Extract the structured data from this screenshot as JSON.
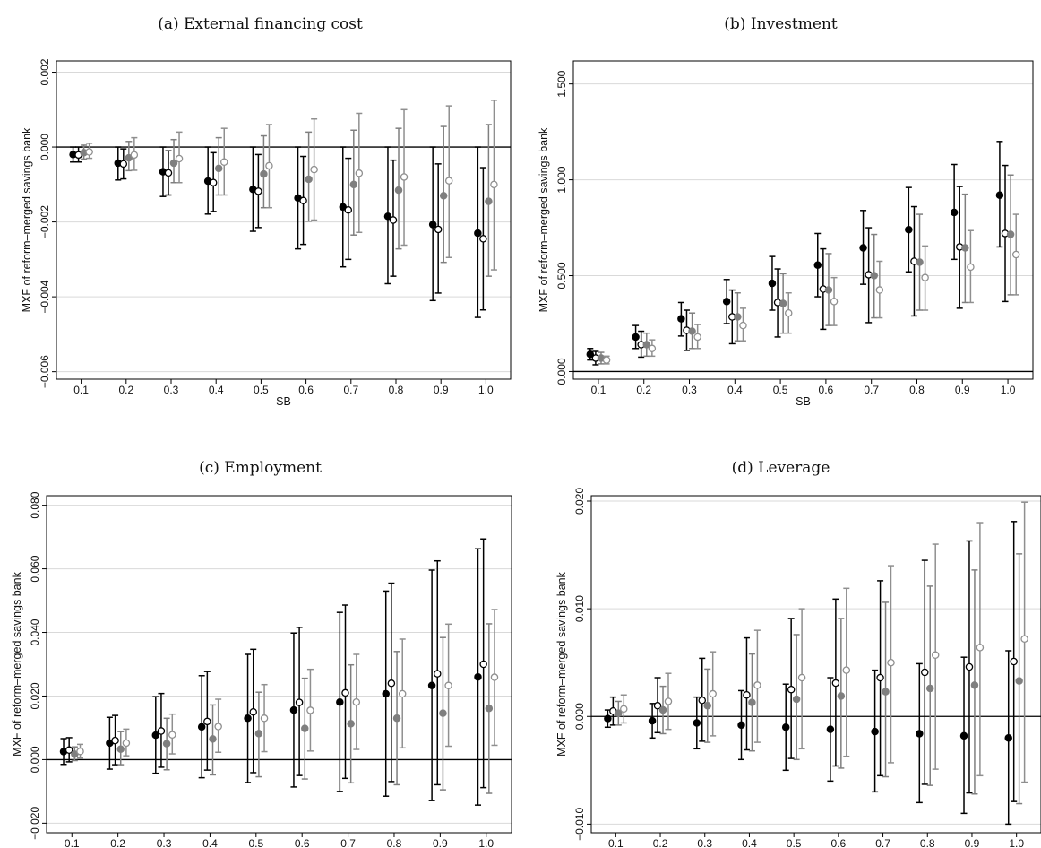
{
  "chart_data": [
    {
      "type": "scatter",
      "title": "(a) External financing cost",
      "xlabel": "SB",
      "ylabel": "MXF of reform–merged savings bank",
      "x_ticks": [
        "0.1",
        "0.2",
        "0.3",
        "0.4",
        "0.5",
        "0.6",
        "0.7",
        "0.8",
        "0.9",
        "1.0"
      ],
      "y_ticks": [
        "0.002",
        "0.000",
        "−0.002",
        "−0.004",
        "−0.006"
      ],
      "y_tick_values": [
        0.002,
        0.0,
        -0.002,
        -0.004,
        -0.006
      ],
      "ylim": [
        -0.0062,
        0.0023
      ],
      "grid": true,
      "zero_line": 0,
      "series": [
        {
          "style": "filled-black",
          "point": [
            -0.0002,
            -0.00043,
            -0.00066,
            -0.00091,
            -0.00113,
            -0.00136,
            -0.0016,
            -0.00185,
            -0.00207,
            -0.0023
          ],
          "lower": [
            -0.0004,
            -0.00088,
            -0.00132,
            -0.00179,
            -0.00225,
            -0.00272,
            -0.0032,
            -0.00365,
            -0.0041,
            -0.00455
          ],
          "upper": [
            0.0,
            0.0,
            0.0,
            0.0,
            0.0,
            0.0,
            0.0,
            0.0,
            0.0,
            0.0
          ]
        },
        {
          "style": "hollow-black",
          "point": [
            -0.00021,
            -0.00045,
            -0.00069,
            -0.00095,
            -0.00118,
            -0.00143,
            -0.00168,
            -0.00195,
            -0.0022,
            -0.00245
          ],
          "lower": [
            -0.0004,
            -0.00085,
            -0.00128,
            -0.00172,
            -0.00215,
            -0.0026,
            -0.003,
            -0.00345,
            -0.0039,
            -0.00435
          ],
          "upper": [
            0.0,
            -5e-05,
            -0.0001,
            -0.00015,
            -0.0002,
            -0.00025,
            -0.0003,
            -0.00035,
            -0.00045,
            -0.00055
          ]
        },
        {
          "style": "filled-gray",
          "point": [
            -0.00015,
            -0.00029,
            -0.00043,
            -0.00057,
            -0.00072,
            -0.00086,
            -0.001,
            -0.00115,
            -0.0013,
            -0.00145
          ],
          "lower": [
            -0.00032,
            -0.00063,
            -0.00095,
            -0.00128,
            -0.00162,
            -0.00198,
            -0.00235,
            -0.00272,
            -0.00308,
            -0.00345
          ],
          "upper": [
            5e-05,
            0.00015,
            0.0002,
            0.00025,
            0.0003,
            0.0004,
            0.00045,
            0.0005,
            0.00055,
            0.0006
          ]
        },
        {
          "style": "hollow-gray",
          "point": [
            -0.00013,
            -0.00021,
            -0.00031,
            -0.0004,
            -0.0005,
            -0.0006,
            -0.0007,
            -0.0008,
            -0.0009,
            -0.001
          ],
          "lower": [
            -0.0003,
            -0.00062,
            -0.00095,
            -0.00128,
            -0.00162,
            -0.00195,
            -0.00228,
            -0.00262,
            -0.00295,
            -0.00328
          ],
          "upper": [
            0.0001,
            0.00025,
            0.0004,
            0.0005,
            0.0006,
            0.00075,
            0.0009,
            0.001,
            0.0011,
            0.00125
          ]
        }
      ]
    },
    {
      "type": "scatter",
      "title": "(b) Investment",
      "xlabel": "SB",
      "ylabel": "MXF of reform–merged savings bank",
      "x_ticks": [
        "0.1",
        "0.2",
        "0.3",
        "0.4",
        "0.5",
        "0.6",
        "0.7",
        "0.8",
        "0.9",
        "1.0"
      ],
      "y_ticks": [
        "0.000",
        "0.500",
        "1.000",
        "1.500"
      ],
      "y_tick_values": [
        0.0,
        0.5,
        1.0,
        1.5
      ],
      "ylim": [
        -0.04,
        1.62
      ],
      "grid": true,
      "zero_line": 0,
      "series": [
        {
          "style": "filled-black",
          "point": [
            0.09,
            0.18,
            0.275,
            0.365,
            0.46,
            0.555,
            0.645,
            0.74,
            0.83,
            0.92
          ],
          "lower": [
            0.06,
            0.12,
            0.185,
            0.25,
            0.32,
            0.39,
            0.455,
            0.52,
            0.585,
            0.65
          ],
          "upper": [
            0.12,
            0.24,
            0.36,
            0.48,
            0.6,
            0.72,
            0.84,
            0.96,
            1.08,
            1.2
          ]
        },
        {
          "style": "hollow-black",
          "point": [
            0.07,
            0.14,
            0.215,
            0.285,
            0.36,
            0.43,
            0.505,
            0.575,
            0.65,
            0.72
          ],
          "lower": [
            0.035,
            0.075,
            0.11,
            0.145,
            0.18,
            0.22,
            0.255,
            0.29,
            0.33,
            0.365
          ],
          "upper": [
            0.105,
            0.21,
            0.32,
            0.425,
            0.535,
            0.64,
            0.75,
            0.86,
            0.965,
            1.075
          ]
        },
        {
          "style": "filled-gray",
          "point": [
            0.07,
            0.14,
            0.21,
            0.285,
            0.355,
            0.425,
            0.5,
            0.57,
            0.645,
            0.715
          ],
          "lower": [
            0.04,
            0.08,
            0.12,
            0.16,
            0.2,
            0.24,
            0.28,
            0.32,
            0.36,
            0.4
          ],
          "upper": [
            0.1,
            0.2,
            0.305,
            0.41,
            0.51,
            0.615,
            0.715,
            0.82,
            0.925,
            1.025
          ]
        },
        {
          "style": "hollow-gray",
          "point": [
            0.06,
            0.12,
            0.18,
            0.24,
            0.305,
            0.365,
            0.425,
            0.49,
            0.545,
            0.61
          ],
          "lower": [
            0.04,
            0.08,
            0.12,
            0.16,
            0.2,
            0.24,
            0.28,
            0.32,
            0.36,
            0.4
          ],
          "upper": [
            0.08,
            0.165,
            0.245,
            0.33,
            0.41,
            0.49,
            0.575,
            0.655,
            0.735,
            0.82
          ]
        }
      ]
    },
    {
      "type": "scatter",
      "title": "(c) Employment",
      "xlabel": "SB",
      "ylabel": "MXF of reform–merged savings bank",
      "x_ticks": [
        "0.1",
        "0.2",
        "0.3",
        "0.4",
        "0.5",
        "0.6",
        "0.7",
        "0.8",
        "0.9",
        "1.0"
      ],
      "y_ticks": [
        "−0.020",
        "0.000",
        "0.020",
        "0.040",
        "0.060",
        "0.080"
      ],
      "y_tick_values": [
        -0.02,
        0.0,
        0.02,
        0.04,
        0.06,
        0.08
      ],
      "ylim": [
        -0.023,
        0.083
      ],
      "grid": true,
      "zero_line": 0,
      "series": [
        {
          "style": "filled-black",
          "point": [
            0.0025,
            0.0052,
            0.0077,
            0.0103,
            0.013,
            0.0156,
            0.0181,
            0.0207,
            0.0233,
            0.026
          ],
          "lower": [
            -0.0015,
            -0.003,
            -0.0043,
            -0.0057,
            -0.0072,
            -0.0086,
            -0.01,
            -0.0115,
            -0.0129,
            -0.0143
          ],
          "upper": [
            0.0066,
            0.0133,
            0.0198,
            0.0264,
            0.0331,
            0.0398,
            0.0463,
            0.053,
            0.0596,
            0.0663
          ]
        },
        {
          "style": "hollow-black",
          "point": [
            0.003,
            0.006,
            0.009,
            0.012,
            0.015,
            0.018,
            0.021,
            0.024,
            0.027,
            0.03
          ],
          "lower": [
            -0.0007,
            -0.0016,
            -0.0024,
            -0.0033,
            -0.0041,
            -0.005,
            -0.0059,
            -0.0069,
            -0.0079,
            -0.0088
          ],
          "upper": [
            0.0069,
            0.0139,
            0.0208,
            0.0277,
            0.0347,
            0.0416,
            0.0486,
            0.0555,
            0.0625,
            0.0694
          ]
        },
        {
          "style": "filled-gray",
          "point": [
            0.0017,
            0.0033,
            0.005,
            0.0065,
            0.0082,
            0.0098,
            0.0113,
            0.013,
            0.0146,
            0.0161
          ],
          "lower": [
            -0.0003,
            -0.0016,
            -0.0032,
            -0.0048,
            -0.0054,
            -0.0061,
            -0.0073,
            -0.0079,
            -0.0095,
            -0.0106
          ],
          "upper": [
            0.004,
            0.0088,
            0.013,
            0.0172,
            0.0212,
            0.0256,
            0.0298,
            0.034,
            0.0384,
            0.0427
          ]
        },
        {
          "style": "hollow-gray",
          "point": [
            0.0026,
            0.0052,
            0.0078,
            0.0104,
            0.013,
            0.0155,
            0.0181,
            0.0207,
            0.0233,
            0.0259
          ],
          "lower": [
            0.0005,
            0.0012,
            0.0018,
            0.0023,
            0.0025,
            0.0027,
            0.0032,
            0.0037,
            0.0042,
            0.0045
          ],
          "upper": [
            0.0048,
            0.0096,
            0.0143,
            0.019,
            0.0236,
            0.0284,
            0.0331,
            0.0379,
            0.0426,
            0.0472
          ]
        }
      ]
    },
    {
      "type": "scatter",
      "title": "(d) Leverage",
      "xlabel": "SB",
      "ylabel": "MXF of reform–merged savings bank",
      "x_ticks": [
        "0.1",
        "0.2",
        "0.3",
        "0.4",
        "0.5",
        "0.6",
        "0.7",
        "0.8",
        "0.9",
        "1.0"
      ],
      "y_ticks": [
        "−0.010",
        "0.000",
        "0.010",
        "0.020"
      ],
      "y_tick_values": [
        -0.01,
        0.0,
        0.01,
        0.02
      ],
      "ylim": [
        -0.0108,
        0.0205
      ],
      "grid": true,
      "zero_line": 0,
      "series": [
        {
          "style": "filled-black",
          "point": [
            -0.0002,
            -0.0004,
            -0.0006,
            -0.0008,
            -0.001,
            -0.0012,
            -0.0014,
            -0.0016,
            -0.0018,
            -0.002
          ],
          "lower": [
            -0.001,
            -0.002,
            -0.003,
            -0.004,
            -0.005,
            -0.006,
            -0.007,
            -0.008,
            -0.009,
            -0.01
          ],
          "upper": [
            0.0006,
            0.0012,
            0.0018,
            0.0024,
            0.003,
            0.0036,
            0.0043,
            0.0049,
            0.0055,
            0.0061
          ]
        },
        {
          "style": "hollow-black",
          "point": [
            0.0005,
            0.001,
            0.0015,
            0.002,
            0.0025,
            0.0031,
            0.0036,
            0.0041,
            0.0046,
            0.0051
          ],
          "lower": [
            -0.0008,
            -0.0015,
            -0.0023,
            -0.0031,
            -0.0039,
            -0.0046,
            -0.0055,
            -0.0063,
            -0.0071,
            -0.0079
          ],
          "upper": [
            0.0018,
            0.0036,
            0.0054,
            0.0073,
            0.0091,
            0.0109,
            0.0126,
            0.0145,
            0.0163,
            0.0181
          ]
        },
        {
          "style": "filled-gray",
          "point": [
            0.0003,
            0.0006,
            0.001,
            0.0013,
            0.0016,
            0.0019,
            0.0023,
            0.0026,
            0.0029,
            0.0033
          ],
          "lower": [
            -0.0008,
            -0.0016,
            -0.0024,
            -0.0032,
            -0.004,
            -0.0048,
            -0.0056,
            -0.0064,
            -0.0072,
            -0.0081
          ],
          "upper": [
            0.0014,
            0.0028,
            0.0044,
            0.0058,
            0.0076,
            0.0091,
            0.0106,
            0.0121,
            0.0136,
            0.0151
          ]
        },
        {
          "style": "hollow-gray",
          "point": [
            0.0007,
            0.0014,
            0.0021,
            0.0029,
            0.0036,
            0.0043,
            0.005,
            0.0057,
            0.0064,
            0.0072
          ],
          "lower": [
            -0.0006,
            -0.0012,
            -0.0018,
            -0.0024,
            -0.003,
            -0.0037,
            -0.0043,
            -0.0049,
            -0.0055,
            -0.0061
          ],
          "upper": [
            0.002,
            0.004,
            0.006,
            0.008,
            0.01,
            0.0119,
            0.014,
            0.016,
            0.018,
            0.0199
          ]
        }
      ]
    }
  ]
}
